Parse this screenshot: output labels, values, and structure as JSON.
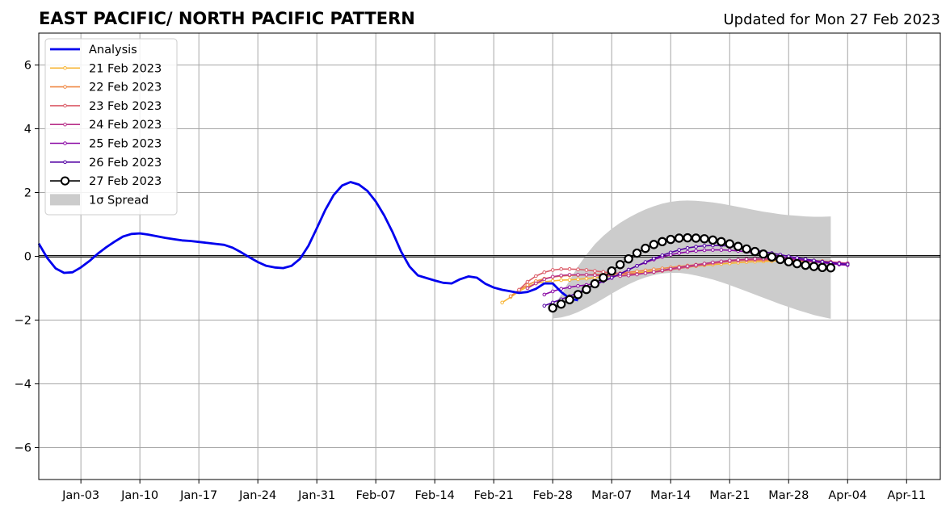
{
  "chart_data": {
    "type": "line",
    "title": "EAST PACIFIC/ NORTH PACIFIC PATTERN",
    "subtitle": "Updated for Mon 27 Feb 2023",
    "xlabel": "",
    "ylabel": "",
    "ylim": [
      -7,
      7
    ],
    "yticks": [
      -6,
      -4,
      -2,
      0,
      2,
      4,
      6
    ],
    "ytick_labels": [
      "−6",
      "−4",
      "−2",
      "0",
      "2",
      "4",
      "6"
    ],
    "xlim": [
      "2022-12-29",
      "2023-04-15"
    ],
    "xticks": [
      "2023-01-03",
      "2023-01-10",
      "2023-01-17",
      "2023-01-24",
      "2023-01-31",
      "2023-02-07",
      "2023-02-14",
      "2023-02-21",
      "2023-02-28",
      "2023-03-07",
      "2023-03-14",
      "2023-03-21",
      "2023-03-28",
      "2023-04-04",
      "2023-04-11"
    ],
    "xtick_labels": [
      "Jan-03",
      "Jan-10",
      "Jan-17",
      "Jan-24",
      "Jan-31",
      "Feb-07",
      "Feb-14",
      "Feb-21",
      "Feb-28",
      "Mar-07",
      "Mar-14",
      "Mar-21",
      "Mar-28",
      "Apr-04",
      "Apr-11"
    ],
    "grid": true,
    "legend_position": "top-left",
    "analysis": {
      "name": "Analysis",
      "color": "#0000ee",
      "start": "2022-12-29",
      "values": [
        0.4,
        -0.05,
        -0.38,
        -0.52,
        -0.5,
        -0.35,
        -0.15,
        0.08,
        0.28,
        0.46,
        0.62,
        0.7,
        0.72,
        0.68,
        0.63,
        0.58,
        0.54,
        0.5,
        0.48,
        0.45,
        0.42,
        0.39,
        0.36,
        0.27,
        0.13,
        -0.03,
        -0.18,
        -0.3,
        -0.35,
        -0.37,
        -0.3,
        -0.08,
        0.33,
        0.88,
        1.45,
        1.92,
        2.22,
        2.33,
        2.25,
        2.05,
        1.72,
        1.28,
        0.75,
        0.15,
        -0.32,
        -0.6,
        -0.68,
        -0.76,
        -0.83,
        -0.85,
        -0.72,
        -0.63,
        -0.67,
        -0.86,
        -0.98,
        -1.05,
        -1.1,
        -1.15,
        -1.12,
        -1.02,
        -0.85,
        -0.85,
        -1.12,
        -1.32,
        -1.38
      ]
    },
    "forecasts": [
      {
        "name": "21 Feb 2023",
        "color": "#f7b536",
        "start": "2023-02-22",
        "values": [
          -1.45,
          -1.28,
          -1.1,
          -0.95,
          -0.85,
          -0.8,
          -0.77,
          -0.75,
          -0.74,
          -0.72,
          -0.7,
          -0.67,
          -0.64,
          -0.61,
          -0.58,
          -0.55,
          -0.52,
          -0.49,
          -0.46,
          -0.43,
          -0.4,
          -0.37,
          -0.34,
          -0.31,
          -0.28,
          -0.26,
          -0.24,
          -0.22,
          -0.2,
          -0.18,
          -0.17,
          -0.16,
          -0.15,
          -0.14,
          -0.13,
          -0.12,
          -0.12,
          -0.13,
          -0.15,
          -0.17,
          -0.2,
          -0.22
        ]
      },
      {
        "name": "22 Feb 2023",
        "color": "#ef8a47",
        "start": "2023-02-23",
        "values": [
          -1.25,
          -1.05,
          -0.9,
          -0.78,
          -0.7,
          -0.65,
          -0.62,
          -0.6,
          -0.59,
          -0.58,
          -0.57,
          -0.56,
          -0.55,
          -0.53,
          -0.5,
          -0.47,
          -0.44,
          -0.41,
          -0.38,
          -0.35,
          -0.32,
          -0.29,
          -0.26,
          -0.23,
          -0.2,
          -0.18,
          -0.16,
          -0.14,
          -0.13,
          -0.12,
          -0.12,
          -0.12,
          -0.12,
          -0.13,
          -0.14,
          -0.16,
          -0.18,
          -0.2,
          -0.22,
          -0.24,
          -0.26
        ]
      },
      {
        "name": "23 Feb 2023",
        "color": "#db5c68",
        "start": "2023-02-24",
        "values": [
          -1.05,
          -0.8,
          -0.62,
          -0.5,
          -0.43,
          -0.4,
          -0.4,
          -0.41,
          -0.43,
          -0.46,
          -0.49,
          -0.52,
          -0.54,
          -0.55,
          -0.55,
          -0.53,
          -0.5,
          -0.46,
          -0.42,
          -0.38,
          -0.34,
          -0.3,
          -0.26,
          -0.22,
          -0.19,
          -0.16,
          -0.14,
          -0.12,
          -0.11,
          -0.1,
          -0.1,
          -0.1,
          -0.1,
          -0.11,
          -0.12,
          -0.14,
          -0.16,
          -0.18,
          -0.2,
          -0.22
        ]
      },
      {
        "name": "24 Feb 2023",
        "color": "#b83289",
        "start": "2023-02-25",
        "values": [
          -1.0,
          -0.85,
          -0.72,
          -0.64,
          -0.6,
          -0.58,
          -0.58,
          -0.58,
          -0.59,
          -0.6,
          -0.61,
          -0.62,
          -0.6,
          -0.57,
          -0.53,
          -0.49,
          -0.44,
          -0.39,
          -0.35,
          -0.31,
          -0.27,
          -0.23,
          -0.19,
          -0.16,
          -0.13,
          -0.11,
          -0.09,
          -0.08,
          -0.07,
          -0.07,
          -0.08,
          -0.09,
          -0.1,
          -0.12,
          -0.14,
          -0.16,
          -0.18,
          -0.2,
          -0.22
        ]
      },
      {
        "name": "25 Feb 2023",
        "color": "#8b0aa5",
        "start": "2023-02-27",
        "values": [
          -1.2,
          -1.1,
          -1.02,
          -0.97,
          -0.93,
          -0.9,
          -0.85,
          -0.78,
          -0.68,
          -0.55,
          -0.42,
          -0.3,
          -0.2,
          -0.1,
          -0.02,
          0.05,
          0.1,
          0.14,
          0.17,
          0.19,
          0.2,
          0.2,
          0.19,
          0.17,
          0.14,
          0.11,
          0.07,
          0.03,
          -0.01,
          -0.05,
          -0.09,
          -0.13,
          -0.17,
          -0.2,
          -0.23,
          -0.26,
          -0.28
        ]
      },
      {
        "name": "26 Feb 2023",
        "color": "#5302a3",
        "start": "2023-02-27",
        "values": [
          -1.55,
          -1.45,
          -1.35,
          -1.25,
          -1.14,
          -1.02,
          -0.9,
          -0.78,
          -0.67,
          -0.55,
          -0.42,
          -0.3,
          -0.18,
          -0.07,
          0.03,
          0.12,
          0.2,
          0.26,
          0.3,
          0.33,
          0.34,
          0.34,
          0.32,
          0.29,
          0.25,
          0.2,
          0.15,
          0.1,
          0.05,
          0.0,
          -0.05,
          -0.09,
          -0.13,
          -0.17,
          -0.2,
          -0.23,
          -0.25
        ]
      },
      {
        "name": "27 Feb 2023",
        "color": "#000000",
        "start": "2023-02-28",
        "values": [
          -1.62,
          -1.5,
          -1.36,
          -1.2,
          -1.04,
          -0.86,
          -0.67,
          -0.46,
          -0.26,
          -0.08,
          0.1,
          0.25,
          0.37,
          0.46,
          0.53,
          0.57,
          0.58,
          0.57,
          0.55,
          0.51,
          0.46,
          0.39,
          0.31,
          0.23,
          0.15,
          0.07,
          -0.02,
          -0.1,
          -0.17,
          -0.23,
          -0.28,
          -0.32,
          -0.35,
          -0.36
        ]
      }
    ],
    "spread": {
      "name": "1σ Spread",
      "color": "#cccccc",
      "start": "2023-02-28",
      "upper": [
        -1.62,
        -1.2,
        -0.75,
        -0.32,
        0.05,
        0.38,
        0.64,
        0.86,
        1.05,
        1.21,
        1.35,
        1.47,
        1.57,
        1.65,
        1.71,
        1.74,
        1.75,
        1.74,
        1.72,
        1.69,
        1.65,
        1.6,
        1.55,
        1.5,
        1.45,
        1.4,
        1.36,
        1.32,
        1.29,
        1.27,
        1.25,
        1.24,
        1.24,
        1.25
      ],
      "lower": [
        -1.95,
        -1.92,
        -1.85,
        -1.75,
        -1.62,
        -1.48,
        -1.33,
        -1.17,
        -1.02,
        -0.88,
        -0.76,
        -0.66,
        -0.59,
        -0.54,
        -0.52,
        -0.52,
        -0.55,
        -0.6,
        -0.66,
        -0.73,
        -0.81,
        -0.9,
        -1.0,
        -1.1,
        -1.2,
        -1.3,
        -1.4,
        -1.5,
        -1.59,
        -1.68,
        -1.76,
        -1.84,
        -1.9,
        -1.96
      ]
    }
  }
}
